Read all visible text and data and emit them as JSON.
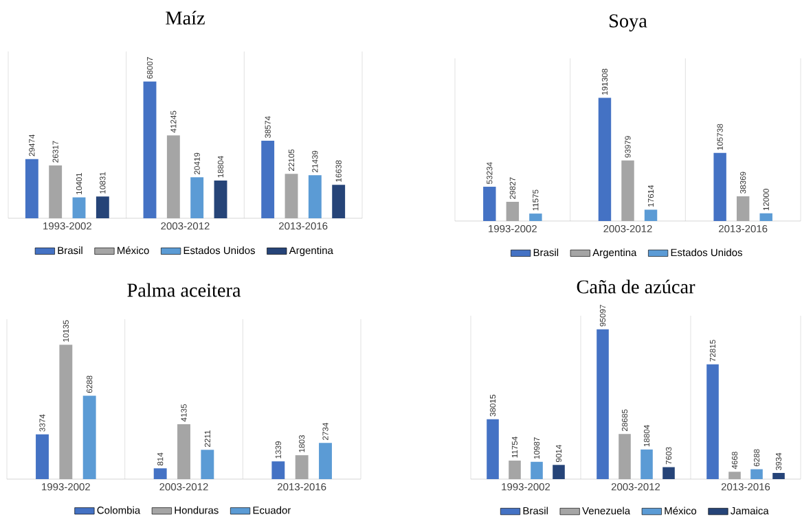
{
  "chart_data": [
    {
      "type": "bar",
      "title": "Maíz",
      "categories": [
        "1993-2002",
        "2003-2012",
        "2013-2016"
      ],
      "data_labels": true,
      "legend": "bottom",
      "series": [
        {
          "name": "Brasil",
          "color": "#4472c4",
          "values": [
            29474,
            68007,
            38574
          ]
        },
        {
          "name": "México",
          "color": "#a5a5a5",
          "values": [
            26317,
            41245,
            22105
          ]
        },
        {
          "name": "Estados Unidos",
          "color": "#5b9bd5",
          "values": [
            10401,
            20419,
            21439
          ]
        },
        {
          "name": "Argentina",
          "color": "#264478",
          "values": [
            10831,
            18804,
            16638
          ]
        }
      ]
    },
    {
      "type": "bar",
      "title": "Soya",
      "categories": [
        "1993-2002",
        "2003-2012",
        "2013-2016"
      ],
      "data_labels": true,
      "legend": "bottom",
      "series": [
        {
          "name": "Brasil",
          "color": "#4472c4",
          "values": [
            53234,
            191308,
            105738
          ]
        },
        {
          "name": "Argentina",
          "color": "#a5a5a5",
          "values": [
            29827,
            93979,
            38369
          ]
        },
        {
          "name": "Estados Unidos",
          "color": "#5b9bd5",
          "values": [
            11575,
            17614,
            12000
          ]
        }
      ]
    },
    {
      "type": "bar",
      "title": "Palma aceitera",
      "categories": [
        "1993-2002",
        "2003-2012",
        "2013-2016"
      ],
      "data_labels": true,
      "legend": "bottom",
      "series": [
        {
          "name": "Colombia",
          "color": "#4472c4",
          "values": [
            3374,
            814,
            1339
          ]
        },
        {
          "name": "Honduras",
          "color": "#a5a5a5",
          "values": [
            10135,
            4135,
            1803
          ]
        },
        {
          "name": "Ecuador",
          "color": "#5b9bd5",
          "values": [
            6288,
            2211,
            2734
          ]
        }
      ]
    },
    {
      "type": "bar",
      "title": "Caña de azúcar",
      "categories": [
        "1993-2002",
        "2003-2012",
        "2013-2016"
      ],
      "data_labels": true,
      "legend": "bottom",
      "series": [
        {
          "name": "Brasil",
          "color": "#4472c4",
          "values": [
            38015,
            95097,
            72815
          ]
        },
        {
          "name": "Venezuela",
          "color": "#a5a5a5",
          "values": [
            11754,
            28685,
            4668
          ]
        },
        {
          "name": "México",
          "color": "#5b9bd5",
          "values": [
            10987,
            18804,
            6288
          ]
        },
        {
          "name": "Jamaica",
          "color": "#264478",
          "values": [
            9014,
            7603,
            3934
          ]
        }
      ]
    }
  ]
}
